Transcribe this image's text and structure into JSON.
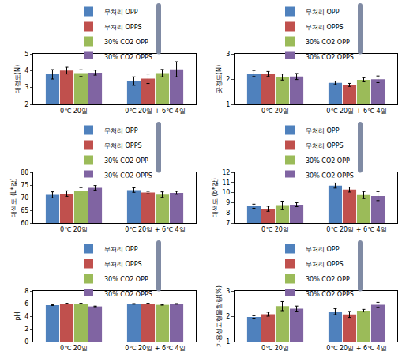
{
  "chart_data": [
    {
      "type": "bar",
      "ylabel": "대경도(N)",
      "categories": [
        "0℃ 20일",
        "0℃ 20일 + 6℃ 4일"
      ],
      "ylim": [
        2,
        5
      ],
      "yticks": [
        2,
        3,
        4,
        5
      ],
      "grid": false,
      "legend": "top",
      "series": [
        {
          "name": "무처리 OPP",
          "color": "#4f81bd",
          "values": [
            3.78,
            3.38
          ],
          "errors": [
            0.28,
            0.25
          ]
        },
        {
          "name": "무처리 OPPS",
          "color": "#c0504d",
          "values": [
            4.0,
            3.52
          ],
          "errors": [
            0.2,
            0.28
          ]
        },
        {
          "name": "30% CO2 OPP",
          "color": "#9bbb59",
          "values": [
            3.85,
            3.85
          ],
          "errors": [
            0.2,
            0.22
          ]
        },
        {
          "name": "30% CO2 OPPS",
          "color": "#8064a2",
          "values": [
            3.88,
            4.08
          ],
          "errors": [
            0.15,
            0.45
          ]
        }
      ]
    },
    {
      "type": "bar",
      "ylabel": "곳경도(N)",
      "categories": [
        "0℃ 20일",
        "0℃ 20일 + 6℃ 4일"
      ],
      "ylim": [
        1,
        3
      ],
      "yticks": [
        1,
        2,
        3
      ],
      "grid": false,
      "legend": "top",
      "series": [
        {
          "name": "무처리 OPP",
          "color": "#4f81bd",
          "values": [
            2.22,
            1.85
          ],
          "errors": [
            0.12,
            0.07
          ]
        },
        {
          "name": "무처리 OPPS",
          "color": "#c0504d",
          "values": [
            2.2,
            1.77
          ],
          "errors": [
            0.1,
            0.06
          ]
        },
        {
          "name": "30% CO2 OPP",
          "color": "#9bbb59",
          "values": [
            2.08,
            1.97
          ],
          "errors": [
            0.12,
            0.08
          ]
        },
        {
          "name": "30% CO2 OPPS",
          "color": "#8064a2",
          "values": [
            2.1,
            1.99
          ],
          "errors": [
            0.12,
            0.13
          ]
        }
      ]
    },
    {
      "type": "bar",
      "ylabel": "대색도 (L*값)",
      "categories": [
        "0℃ 20일",
        "0℃ 20일 + 6℃ 4일"
      ],
      "ylim": [
        60,
        80
      ],
      "yticks": [
        60,
        65,
        70,
        75,
        80
      ],
      "grid": false,
      "legend": "top",
      "series": [
        {
          "name": "무처리 OPP",
          "color": "#4f81bd",
          "values": [
            71.1,
            73.0
          ],
          "errors": [
            1.2,
            0.9
          ]
        },
        {
          "name": "무처리 OPPS",
          "color": "#c0504d",
          "values": [
            71.6,
            72.0
          ],
          "errors": [
            1.1,
            0.5
          ]
        },
        {
          "name": "30% CO2 OPP",
          "color": "#9bbb59",
          "values": [
            72.7,
            71.2
          ],
          "errors": [
            1.3,
            1.1
          ]
        },
        {
          "name": "30% CO2 OPPS",
          "color": "#8064a2",
          "values": [
            73.9,
            71.9
          ],
          "errors": [
            0.9,
            0.6
          ]
        }
      ]
    },
    {
      "type": "bar",
      "ylabel": "대색도 (b*값)",
      "categories": [
        "0℃ 20일",
        "0℃ 20일 + 6℃ 4일"
      ],
      "ylim": [
        7,
        12
      ],
      "yticks": [
        7,
        8,
        9,
        10,
        11,
        12
      ],
      "grid": false,
      "legend": "top",
      "series": [
        {
          "name": "무처리 OPP",
          "color": "#4f81bd",
          "values": [
            8.65,
            10.7
          ],
          "errors": [
            0.2,
            0.25
          ]
        },
        {
          "name": "무처리 OPPS",
          "color": "#c0504d",
          "values": [
            8.4,
            10.3
          ],
          "errors": [
            0.25,
            0.25
          ]
        },
        {
          "name": "30% CO2 OPP",
          "color": "#9bbb59",
          "values": [
            8.75,
            9.75
          ],
          "errors": [
            0.4,
            0.35
          ]
        },
        {
          "name": "30% CO2 OPPS",
          "color": "#8064a2",
          "values": [
            8.8,
            9.65
          ],
          "errors": [
            0.2,
            0.45
          ]
        }
      ]
    },
    {
      "type": "bar",
      "ylabel": "pH",
      "categories": [
        "0℃ 20일",
        "0℃ 20일 + 6℃ 4일"
      ],
      "ylim": [
        0,
        8
      ],
      "yticks": [
        0,
        2,
        4,
        6,
        8
      ],
      "grid": false,
      "legend": "top",
      "series": [
        {
          "name": "무처리 OPP",
          "color": "#4f81bd",
          "values": [
            5.75,
            5.95
          ],
          "errors": [
            0.05,
            0.05
          ]
        },
        {
          "name": "무처리 OPPS",
          "color": "#c0504d",
          "values": [
            6.0,
            6.0
          ],
          "errors": [
            0.05,
            0.05
          ]
        },
        {
          "name": "30% CO2 OPP",
          "color": "#9bbb59",
          "values": [
            6.0,
            5.8
          ],
          "errors": [
            0.05,
            0.05
          ]
        },
        {
          "name": "30% CO2 OPPS",
          "color": "#8064a2",
          "values": [
            5.55,
            5.95
          ],
          "errors": [
            0.05,
            0.05
          ]
        }
      ]
    },
    {
      "type": "bar",
      "ylabel": "가용성고형물함량(%)",
      "categories": [
        "0℃ 20일",
        "0℃ 20일 + 6℃ 4일"
      ],
      "ylim": [
        1,
        3
      ],
      "yticks": [
        1,
        2,
        3
      ],
      "grid": false,
      "legend": "top",
      "series": [
        {
          "name": "무처리 OPP",
          "color": "#4f81bd",
          "values": [
            1.97,
            2.18
          ],
          "errors": [
            0.05,
            0.12
          ]
        },
        {
          "name": "무처리 OPPS",
          "color": "#c0504d",
          "values": [
            2.08,
            2.07
          ],
          "errors": [
            0.08,
            0.12
          ]
        },
        {
          "name": "30% CO2 OPP",
          "color": "#9bbb59",
          "values": [
            2.4,
            2.22
          ],
          "errors": [
            0.18,
            0.05
          ]
        },
        {
          "name": "30% CO2 OPPS",
          "color": "#8064a2",
          "values": [
            2.3,
            2.45
          ],
          "errors": [
            0.1,
            0.1
          ]
        }
      ]
    }
  ]
}
